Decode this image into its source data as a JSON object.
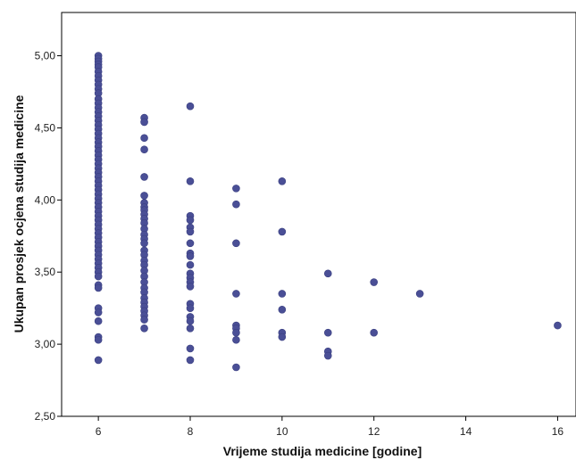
{
  "chart_data": {
    "type": "scatter",
    "title": "",
    "xlabel": "Vrijeme studija medicine [godine]",
    "ylabel": "Ukupan prosjek ocjena studija medicine",
    "xlim": [
      5.2,
      16.4
    ],
    "ylim": [
      2.5,
      5.3
    ],
    "x_ticks": [
      6,
      8,
      10,
      12,
      14,
      16
    ],
    "x_tick_labels": [
      "6",
      "8",
      "10",
      "12",
      "14",
      "16"
    ],
    "y_ticks": [
      2.5,
      3.0,
      3.5,
      4.0,
      4.5,
      5.0
    ],
    "y_tick_labels": [
      "2,50",
      "3,00",
      "3,50",
      "4,00",
      "4,50",
      "5,00"
    ],
    "grid": false,
    "marker_color": "#4a4f96",
    "series": [
      {
        "points": [
          [
            6,
            5.0
          ],
          [
            6,
            4.98
          ],
          [
            6,
            4.96
          ],
          [
            6,
            4.94
          ],
          [
            6,
            4.92
          ],
          [
            6,
            4.89
          ],
          [
            6,
            4.86
          ],
          [
            6,
            4.83
          ],
          [
            6,
            4.8
          ],
          [
            6,
            4.77
          ],
          [
            6,
            4.74
          ],
          [
            6,
            4.7
          ],
          [
            6,
            4.67
          ],
          [
            6,
            4.64
          ],
          [
            6,
            4.61
          ],
          [
            6,
            4.58
          ],
          [
            6,
            4.55
          ],
          [
            6,
            4.52
          ],
          [
            6,
            4.49
          ],
          [
            6,
            4.46
          ],
          [
            6,
            4.43
          ],
          [
            6,
            4.4
          ],
          [
            6,
            4.37
          ],
          [
            6,
            4.34
          ],
          [
            6,
            4.31
          ],
          [
            6,
            4.28
          ],
          [
            6,
            4.25
          ],
          [
            6,
            4.22
          ],
          [
            6,
            4.19
          ],
          [
            6,
            4.16
          ],
          [
            6,
            4.13
          ],
          [
            6,
            4.1
          ],
          [
            6,
            4.07
          ],
          [
            6,
            4.04
          ],
          [
            6,
            4.01
          ],
          [
            6,
            3.98
          ],
          [
            6,
            3.95
          ],
          [
            6,
            3.92
          ],
          [
            6,
            3.89
          ],
          [
            6,
            3.86
          ],
          [
            6,
            3.83
          ],
          [
            6,
            3.8
          ],
          [
            6,
            3.77
          ],
          [
            6,
            3.74
          ],
          [
            6,
            3.71
          ],
          [
            6,
            3.68
          ],
          [
            6,
            3.65
          ],
          [
            6,
            3.62
          ],
          [
            6,
            3.59
          ],
          [
            6,
            3.56
          ],
          [
            6,
            3.53
          ],
          [
            6,
            3.5
          ],
          [
            6,
            3.47
          ],
          [
            6,
            3.41
          ],
          [
            6,
            3.39
          ],
          [
            6,
            3.25
          ],
          [
            6,
            3.22
          ],
          [
            6,
            3.16
          ],
          [
            6,
            3.05
          ],
          [
            6,
            3.03
          ],
          [
            6,
            2.89
          ],
          [
            7,
            4.57
          ],
          [
            7,
            4.54
          ],
          [
            7,
            4.43
          ],
          [
            7,
            4.35
          ],
          [
            7,
            4.16
          ],
          [
            7,
            4.03
          ],
          [
            7,
            3.98
          ],
          [
            7,
            3.95
          ],
          [
            7,
            3.93
          ],
          [
            7,
            3.9
          ],
          [
            7,
            3.87
          ],
          [
            7,
            3.84
          ],
          [
            7,
            3.8
          ],
          [
            7,
            3.76
          ],
          [
            7,
            3.73
          ],
          [
            7,
            3.7
          ],
          [
            7,
            3.65
          ],
          [
            7,
            3.62
          ],
          [
            7,
            3.58
          ],
          [
            7,
            3.55
          ],
          [
            7,
            3.51
          ],
          [
            7,
            3.47
          ],
          [
            7,
            3.43
          ],
          [
            7,
            3.39
          ],
          [
            7,
            3.36
          ],
          [
            7,
            3.32
          ],
          [
            7,
            3.29
          ],
          [
            7,
            3.26
          ],
          [
            7,
            3.23
          ],
          [
            7,
            3.2
          ],
          [
            7,
            3.17
          ],
          [
            7,
            3.11
          ],
          [
            8,
            4.65
          ],
          [
            8,
            4.13
          ],
          [
            8,
            3.89
          ],
          [
            8,
            3.86
          ],
          [
            8,
            3.81
          ],
          [
            8,
            3.78
          ],
          [
            8,
            3.7
          ],
          [
            8,
            3.63
          ],
          [
            8,
            3.61
          ],
          [
            8,
            3.55
          ],
          [
            8,
            3.49
          ],
          [
            8,
            3.46
          ],
          [
            8,
            3.43
          ],
          [
            8,
            3.4
          ],
          [
            8,
            3.28
          ],
          [
            8,
            3.25
          ],
          [
            8,
            3.19
          ],
          [
            8,
            3.16
          ],
          [
            8,
            3.11
          ],
          [
            8,
            2.97
          ],
          [
            8,
            2.89
          ],
          [
            9,
            4.08
          ],
          [
            9,
            3.97
          ],
          [
            9,
            3.7
          ],
          [
            9,
            3.35
          ],
          [
            9,
            3.13
          ],
          [
            9,
            3.11
          ],
          [
            9,
            3.08
          ],
          [
            9,
            3.03
          ],
          [
            9,
            2.84
          ],
          [
            10,
            4.13
          ],
          [
            10,
            3.78
          ],
          [
            10,
            3.35
          ],
          [
            10,
            3.24
          ],
          [
            10,
            3.08
          ],
          [
            10,
            3.05
          ],
          [
            11,
            3.49
          ],
          [
            11,
            3.08
          ],
          [
            11,
            2.95
          ],
          [
            11,
            2.92
          ],
          [
            12,
            3.43
          ],
          [
            12,
            3.08
          ],
          [
            13,
            3.35
          ],
          [
            16,
            3.13
          ]
        ]
      }
    ]
  }
}
